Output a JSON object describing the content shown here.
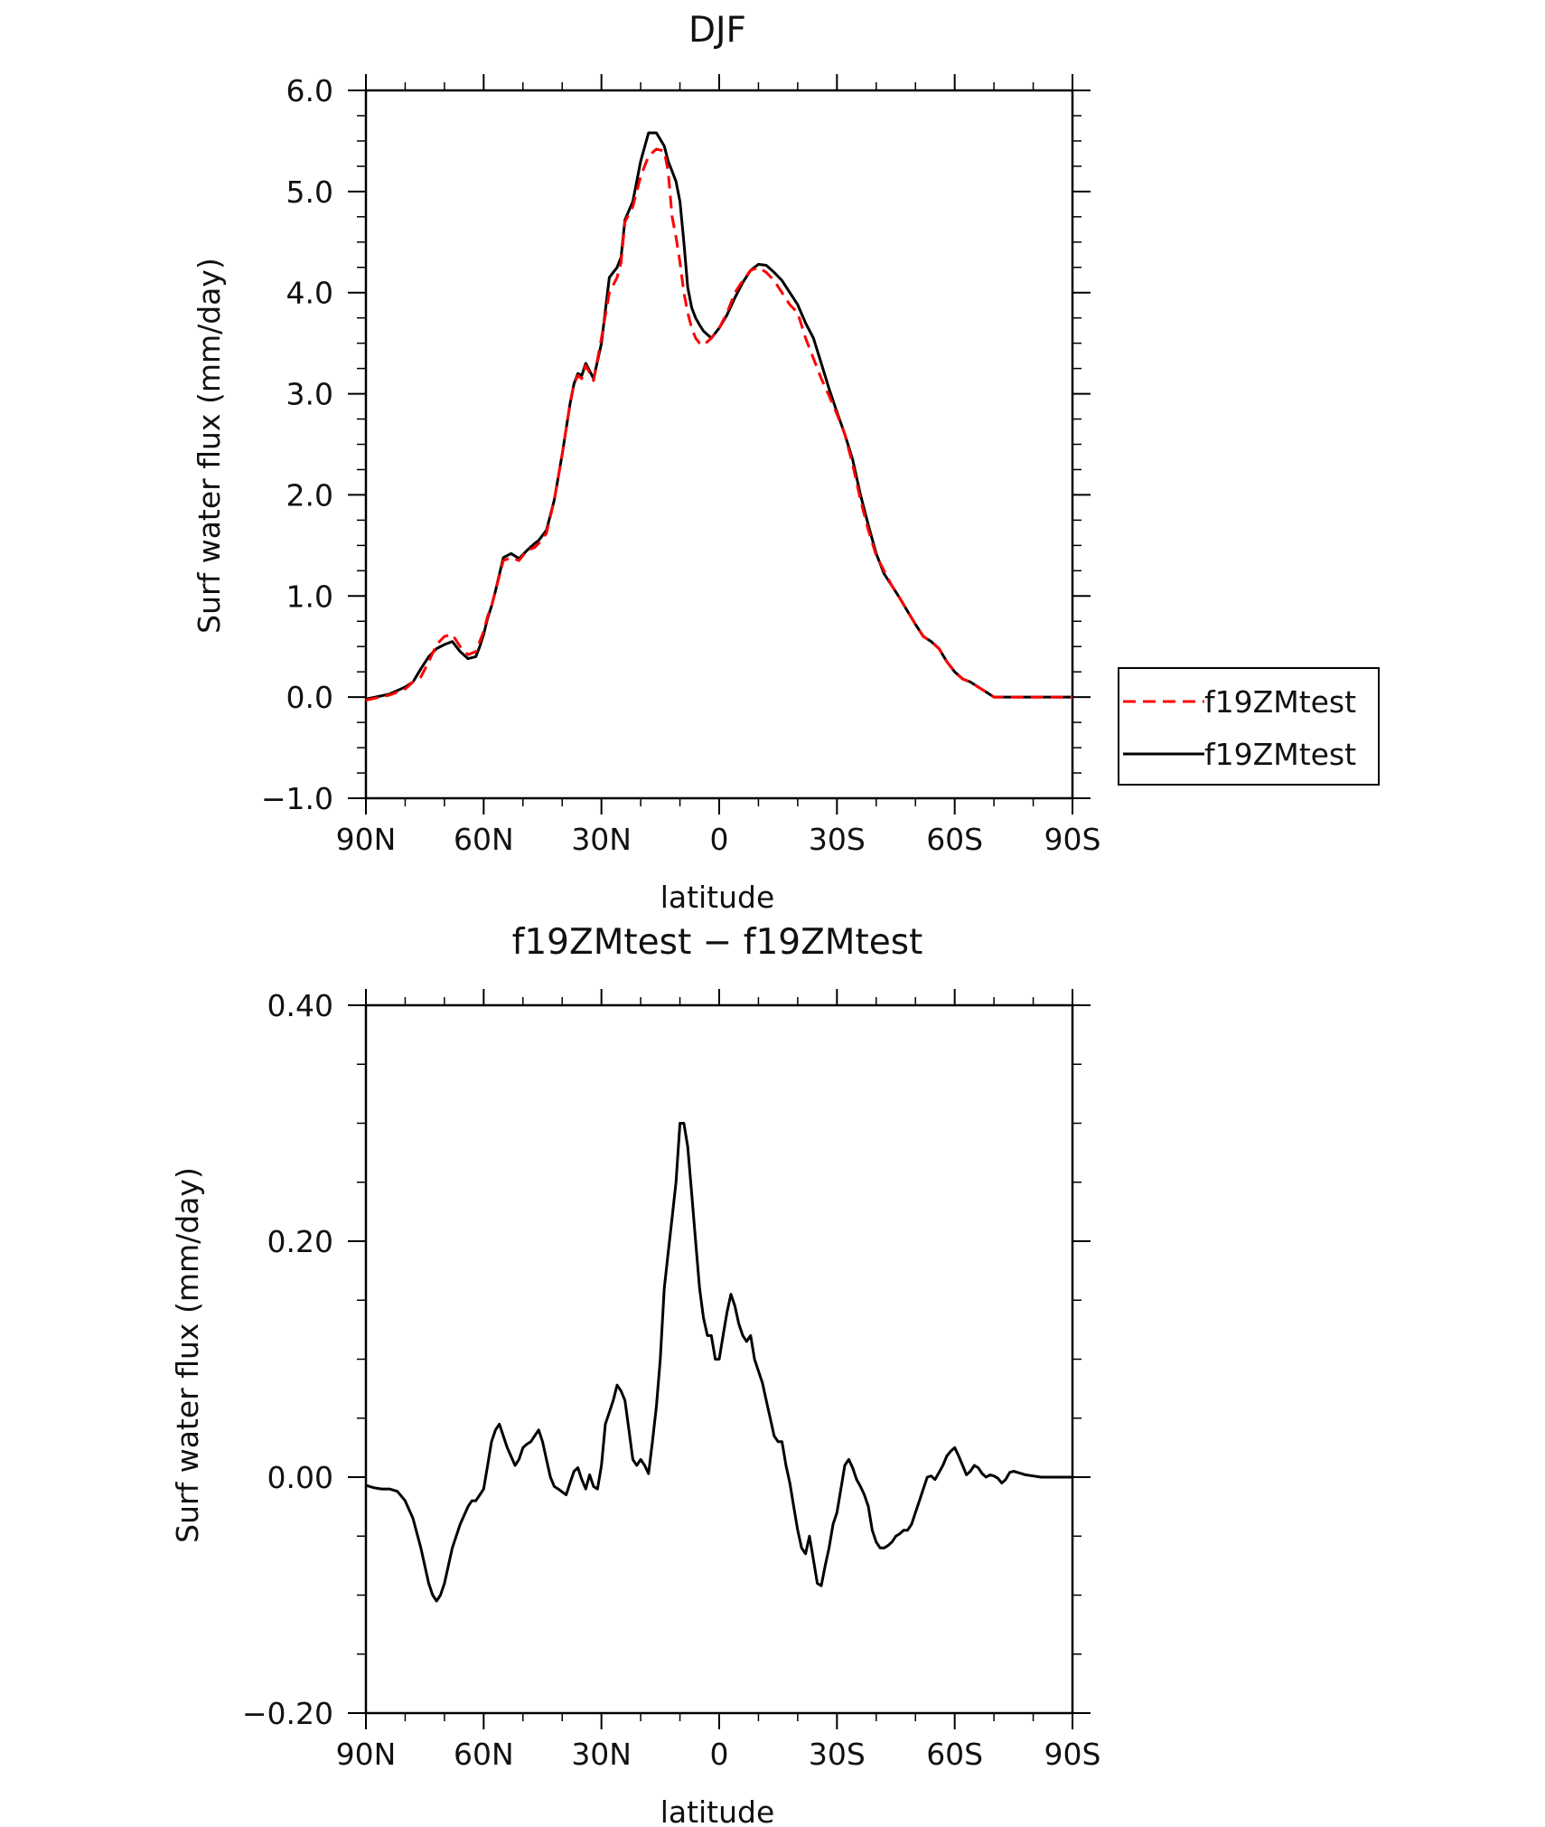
{
  "chart_data": [
    {
      "type": "line",
      "title": "DJF",
      "xlabel": "latitude",
      "ylabel": "Surf water flux (mm/day)",
      "xlim": [
        90,
        -90
      ],
      "ylim": [
        -1.0,
        6.0
      ],
      "xticks": [
        90,
        60,
        30,
        0,
        -30,
        -60,
        -90
      ],
      "xtick_labels": [
        "90N",
        "60N",
        "30N",
        "0",
        "30S",
        "60S",
        "90S"
      ],
      "yticks": [
        -1,
        0,
        1,
        2,
        3,
        4,
        5,
        6
      ],
      "ytick_labels": [
        "−1.0",
        "0.0",
        "1.0",
        "2.0",
        "3.0",
        "4.0",
        "5.0",
        "6.0"
      ],
      "legend": "right",
      "series": [
        {
          "name": "f19ZMtest",
          "color": "#ff0000",
          "dash": "dashed",
          "x": [
            90,
            84,
            80,
            78,
            76,
            74,
            72,
            70,
            68,
            66,
            64,
            62,
            61,
            60,
            59,
            58,
            57,
            55,
            53,
            51,
            49,
            47,
            46,
            44,
            42,
            40,
            38,
            37,
            36,
            35,
            34,
            32,
            30,
            28,
            26,
            25,
            24,
            22,
            20,
            18,
            16,
            14,
            13,
            12,
            11,
            10,
            9,
            8,
            7,
            6,
            5,
            4,
            2,
            0,
            -2,
            -4,
            -6,
            -8,
            -10,
            -12,
            -14,
            -16,
            -18,
            -20,
            -22,
            -24,
            -26,
            -28,
            -30,
            -32,
            -34,
            -36,
            -38,
            -40,
            -42,
            -44,
            -46,
            -48,
            -50,
            -52,
            -54,
            -56,
            -58,
            -60,
            -62,
            -64,
            -66,
            -68,
            -70,
            -72,
            -74,
            -76,
            -78,
            -80,
            -82,
            -84,
            -86,
            -88,
            -90
          ],
          "y": [
            -0.03,
            0.02,
            0.08,
            0.15,
            0.2,
            0.35,
            0.52,
            0.6,
            0.62,
            0.5,
            0.42,
            0.45,
            0.55,
            0.65,
            0.8,
            0.9,
            1.05,
            1.35,
            1.38,
            1.35,
            1.45,
            1.48,
            1.52,
            1.62,
            1.95,
            2.4,
            2.9,
            3.1,
            3.18,
            3.15,
            3.28,
            3.13,
            3.55,
            4.0,
            4.15,
            4.3,
            4.7,
            4.85,
            5.15,
            5.35,
            5.42,
            5.4,
            5.2,
            4.75,
            4.55,
            4.3,
            4.0,
            3.8,
            3.65,
            3.55,
            3.5,
            3.48,
            3.55,
            3.65,
            3.8,
            4.0,
            4.12,
            4.22,
            4.25,
            4.2,
            4.12,
            4.0,
            3.88,
            3.8,
            3.55,
            3.35,
            3.15,
            2.98,
            2.8,
            2.6,
            2.3,
            1.95,
            1.65,
            1.4,
            1.25,
            1.1,
            0.98,
            0.85,
            0.72,
            0.6,
            0.55,
            0.48,
            0.35,
            0.25,
            0.18,
            0.15,
            0.1,
            0.05,
            0.0,
            0.0,
            0.0,
            0.0,
            0.0,
            0.0,
            0.0,
            0.0,
            0.0,
            0.0,
            0.0
          ]
        },
        {
          "name": "f19ZMtest",
          "color": "#000000",
          "dash": "solid",
          "x": [
            90,
            84,
            80,
            78,
            76,
            74,
            72,
            70,
            68,
            66,
            64,
            62,
            61,
            60,
            59,
            58,
            57,
            55,
            53,
            51,
            49,
            47,
            46,
            44,
            42,
            40,
            38,
            37,
            36,
            35,
            34,
            32,
            30,
            28,
            26,
            25,
            24,
            22,
            20,
            18,
            16,
            14,
            13,
            12,
            11,
            10,
            9,
            8,
            7,
            6,
            5,
            4,
            2,
            0,
            -2,
            -4,
            -6,
            -8,
            -10,
            -12,
            -14,
            -16,
            -18,
            -20,
            -22,
            -24,
            -26,
            -28,
            -30,
            -32,
            -34,
            -36,
            -38,
            -40,
            -42,
            -44,
            -46,
            -48,
            -50,
            -52,
            -54,
            -56,
            -58,
            -60,
            -62,
            -64,
            -66,
            -68,
            -70,
            -72,
            -74,
            -76,
            -78,
            -80,
            -82,
            -84,
            -86,
            -88,
            -90
          ],
          "y": [
            -0.02,
            0.03,
            0.1,
            0.15,
            0.28,
            0.4,
            0.48,
            0.52,
            0.55,
            0.45,
            0.38,
            0.4,
            0.5,
            0.62,
            0.78,
            0.9,
            1.05,
            1.38,
            1.42,
            1.37,
            1.45,
            1.52,
            1.55,
            1.65,
            1.95,
            2.4,
            2.9,
            3.1,
            3.2,
            3.18,
            3.3,
            3.15,
            3.5,
            4.15,
            4.25,
            4.35,
            4.72,
            4.9,
            5.3,
            5.58,
            5.58,
            5.45,
            5.3,
            5.2,
            5.1,
            4.9,
            4.5,
            4.05,
            3.85,
            3.75,
            3.68,
            3.62,
            3.55,
            3.65,
            3.78,
            3.95,
            4.1,
            4.22,
            4.28,
            4.27,
            4.2,
            4.12,
            4.0,
            3.88,
            3.7,
            3.55,
            3.3,
            3.05,
            2.82,
            2.6,
            2.35,
            2.0,
            1.7,
            1.42,
            1.22,
            1.1,
            0.98,
            0.85,
            0.72,
            0.6,
            0.55,
            0.48,
            0.35,
            0.25,
            0.18,
            0.15,
            0.1,
            0.05,
            0.0,
            0.0,
            0.0,
            0.0,
            0.0,
            0.0,
            0.0,
            0.0,
            0.0,
            0.0,
            0.0
          ]
        }
      ]
    },
    {
      "type": "line",
      "title": "f19ZMtest − f19ZMtest",
      "xlabel": "latitude",
      "ylabel": "Surf water flux (mm/day)",
      "xlim": [
        90,
        -90
      ],
      "ylim": [
        -0.2,
        0.4
      ],
      "xticks": [
        90,
        60,
        30,
        0,
        -30,
        -60,
        -90
      ],
      "xtick_labels": [
        "90N",
        "60N",
        "30N",
        "0",
        "30S",
        "60S",
        "90S"
      ],
      "yticks": [
        -0.2,
        0.0,
        0.2,
        0.4
      ],
      "ytick_labels": [
        "−0.20",
        "0.00",
        "0.20",
        "0.40"
      ],
      "series": [
        {
          "color": "#000000",
          "dash": "solid",
          "x": [
            90,
            88,
            86,
            84,
            82,
            80,
            78,
            76,
            74,
            73,
            72,
            71,
            70,
            68,
            66,
            64,
            63,
            62,
            61,
            60,
            59,
            58,
            57,
            56,
            54,
            52,
            51,
            50,
            49,
            48,
            47,
            46,
            45,
            44,
            43,
            42,
            41,
            39,
            38,
            37,
            36,
            35,
            34,
            33,
            32,
            31,
            30,
            29,
            28,
            27,
            26,
            25,
            24,
            23,
            22,
            21,
            20,
            19,
            18,
            17,
            16,
            15,
            14,
            13,
            12,
            11,
            10,
            9,
            8,
            7,
            6,
            5,
            4,
            3,
            2,
            1,
            0,
            -1,
            -2,
            -3,
            -4,
            -5,
            -6,
            -7,
            -8,
            -9,
            -10,
            -11,
            -12,
            -13,
            -14,
            -15,
            -16,
            -17,
            -18,
            -19,
            -20,
            -21,
            -22,
            -23,
            -24,
            -25,
            -26,
            -27,
            -28,
            -29,
            -30,
            -31,
            -32,
            -33,
            -34,
            -35,
            -36,
            -37,
            -38,
            -39,
            -40,
            -41,
            -42,
            -43,
            -44,
            -45,
            -46,
            -47,
            -48,
            -49,
            -50,
            -51,
            -52,
            -53,
            -54,
            -55,
            -56,
            -57,
            -58,
            -59,
            -60,
            -61,
            -62,
            -63,
            -64,
            -65,
            -66,
            -67,
            -68,
            -69,
            -70,
            -71,
            -72,
            -73,
            -74,
            -75,
            -76,
            -77,
            -78,
            -80,
            -82,
            -84,
            -86,
            -88,
            -90
          ],
          "y": [
            -0.007,
            -0.009,
            -0.01,
            -0.01,
            -0.012,
            -0.02,
            -0.035,
            -0.06,
            -0.09,
            -0.1,
            -0.105,
            -0.1,
            -0.09,
            -0.06,
            -0.04,
            -0.025,
            -0.02,
            -0.02,
            -0.015,
            -0.01,
            0.01,
            0.03,
            0.04,
            0.045,
            0.025,
            0.01,
            0.015,
            0.025,
            0.028,
            0.03,
            0.035,
            0.04,
            0.03,
            0.015,
            0.0,
            -0.008,
            -0.01,
            -0.015,
            -0.005,
            0.005,
            0.008,
            -0.002,
            -0.01,
            0.002,
            -0.008,
            -0.01,
            0.01,
            0.045,
            0.055,
            0.065,
            0.078,
            0.073,
            0.065,
            0.04,
            0.015,
            0.01,
            0.015,
            0.01,
            0.003,
            0.03,
            0.06,
            0.1,
            0.16,
            0.19,
            0.22,
            0.25,
            0.3,
            0.3,
            0.28,
            0.24,
            0.2,
            0.16,
            0.135,
            0.12,
            0.12,
            0.1,
            0.1,
            0.12,
            0.14,
            0.155,
            0.145,
            0.13,
            0.12,
            0.115,
            0.12,
            0.1,
            0.09,
            0.08,
            0.065,
            0.05,
            0.035,
            0.03,
            0.03,
            0.01,
            -0.005,
            -0.025,
            -0.045,
            -0.06,
            -0.065,
            -0.05,
            -0.07,
            -0.09,
            -0.092,
            -0.075,
            -0.06,
            -0.04,
            -0.03,
            -0.01,
            0.01,
            0.015,
            0.008,
            -0.002,
            -0.008,
            -0.015,
            -0.025,
            -0.045,
            -0.055,
            -0.06,
            -0.06,
            -0.058,
            -0.055,
            -0.05,
            -0.048,
            -0.045,
            -0.045,
            -0.04,
            -0.03,
            -0.02,
            -0.01,
            0.0,
            0.001,
            -0.002,
            0.004,
            0.01,
            0.018,
            0.022,
            0.025,
            0.018,
            0.01,
            0.002,
            0.005,
            0.01,
            0.008,
            0.003,
            0.0,
            0.002,
            0.001,
            -0.001,
            -0.005,
            -0.002,
            0.004,
            0.005,
            0.004,
            0.003,
            0.002,
            0.001,
            0.0,
            0.0,
            0.0,
            0.0,
            0.0
          ]
        }
      ]
    }
  ]
}
